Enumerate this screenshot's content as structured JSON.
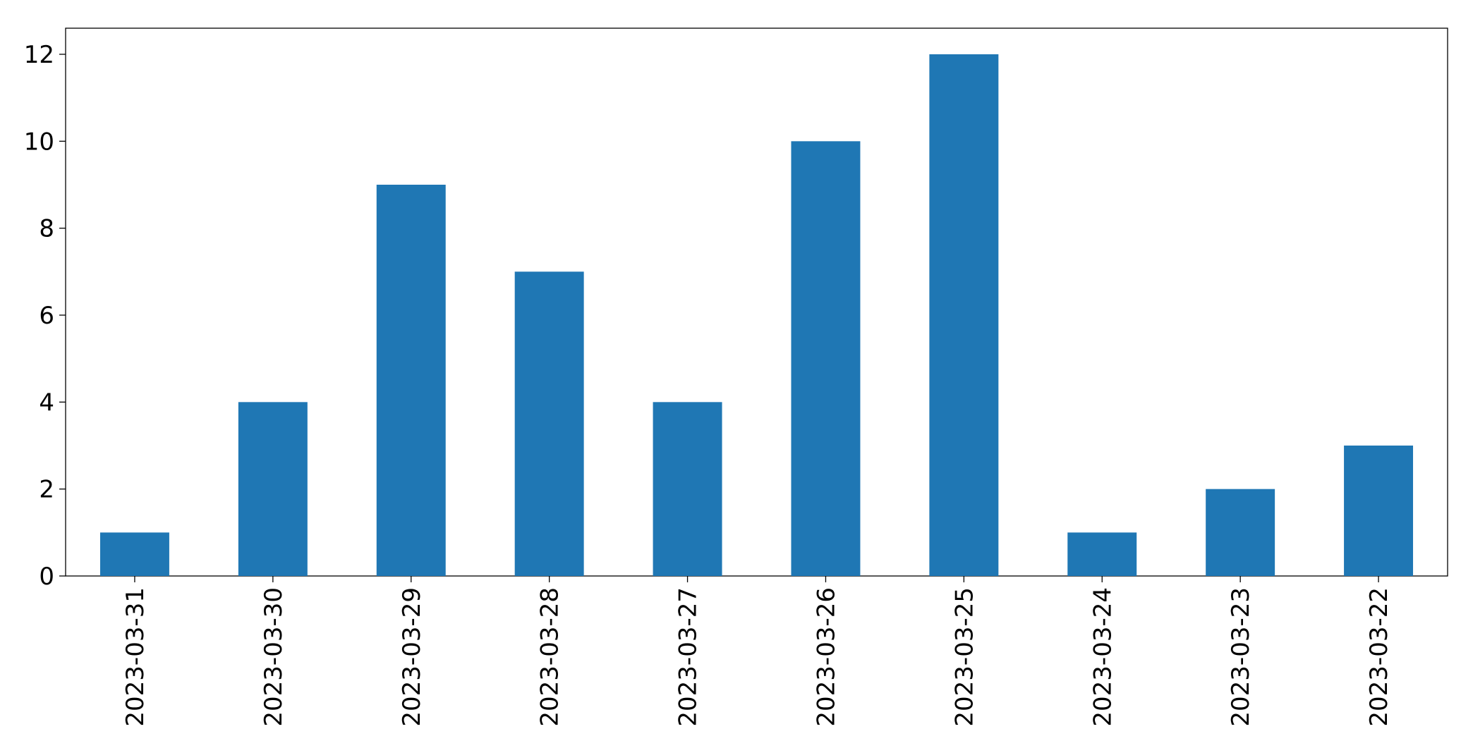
{
  "chart_data": {
    "type": "bar",
    "categories": [
      "2023-03-31",
      "2023-03-30",
      "2023-03-29",
      "2023-03-28",
      "2023-03-27",
      "2023-03-26",
      "2023-03-25",
      "2023-03-24",
      "2023-03-23",
      "2023-03-22"
    ],
    "values": [
      1,
      4,
      9,
      7,
      4,
      10,
      12,
      1,
      2,
      3
    ],
    "color": "#1f77b4",
    "ylim": [
      0,
      12.6
    ],
    "yticks": [
      0,
      2,
      4,
      6,
      8,
      10,
      12
    ],
    "grid": false
  }
}
